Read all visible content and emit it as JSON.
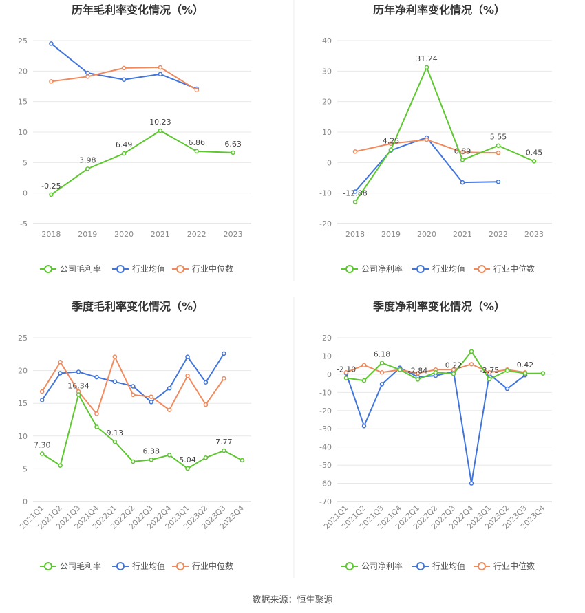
{
  "source_label": "数据来源：恒生聚源",
  "colors": {
    "company": "#5cc72e",
    "industry_avg": "#4175dc",
    "industry_median": "#f08a5d",
    "grid": "#e8e8e8",
    "axis_text": "#888888",
    "title": "#333333"
  },
  "chart_data": [
    {
      "id": "annual-gross",
      "type": "line",
      "title": "历年毛利率变化情况（%）",
      "categories": [
        "2018",
        "2019",
        "2020",
        "2021",
        "2022",
        "2023"
      ],
      "yticks": [
        -5,
        0,
        5,
        10,
        15,
        20,
        25
      ],
      "ylim": [
        -5,
        25
      ],
      "series": [
        {
          "name": "公司毛利率",
          "role": "company",
          "values": [
            -0.25,
            3.98,
            6.49,
            10.23,
            6.86,
            6.63
          ],
          "labels": [
            "-0.25",
            "3.98",
            "6.49",
            "10.23",
            "6.86",
            "6.63"
          ]
        },
        {
          "name": "行业均值",
          "role": "industry_avg",
          "values": [
            24.5,
            19.7,
            18.6,
            19.5,
            17.1,
            null
          ]
        },
        {
          "name": "行业中位数",
          "role": "industry_median",
          "values": [
            18.3,
            19.1,
            20.5,
            20.6,
            16.9,
            null
          ]
        }
      ]
    },
    {
      "id": "annual-net",
      "type": "line",
      "title": "历年净利率变化情况（%）",
      "categories": [
        "2018",
        "2019",
        "2020",
        "2021",
        "2022",
        "2023"
      ],
      "yticks": [
        -20,
        -10,
        0,
        10,
        20,
        30,
        40
      ],
      "ylim": [
        -20,
        40
      ],
      "series": [
        {
          "name": "公司净利率",
          "role": "company",
          "values": [
            -12.88,
            4.25,
            31.24,
            0.89,
            5.55,
            0.45
          ],
          "labels": [
            "-12.88",
            "4.25",
            "31.24",
            "0.89",
            "5.55",
            "0.45"
          ]
        },
        {
          "name": "行业均值",
          "role": "industry_avg",
          "values": [
            -9.5,
            4.0,
            8.2,
            -6.5,
            -6.3,
            null
          ]
        },
        {
          "name": "行业中位数",
          "role": "industry_median",
          "values": [
            3.6,
            6.2,
            7.5,
            3.4,
            3.2,
            null
          ]
        }
      ]
    },
    {
      "id": "quarterly-gross",
      "type": "line",
      "title": "季度毛利率变化情况（%）",
      "categories": [
        "2021Q1",
        "2021Q2",
        "2021Q3",
        "2021Q4",
        "2022Q1",
        "2022Q2",
        "2022Q3",
        "2022Q4",
        "2023Q1",
        "2023Q2",
        "2023Q3",
        "2023Q4"
      ],
      "yticks": [
        0,
        5,
        10,
        15,
        20,
        25
      ],
      "ylim": [
        0,
        25
      ],
      "series": [
        {
          "name": "公司毛利率",
          "role": "company",
          "values": [
            7.3,
            5.5,
            16.34,
            11.4,
            9.13,
            6.1,
            6.38,
            7.1,
            5.04,
            6.7,
            7.77,
            6.3
          ],
          "labels": [
            "7.30",
            null,
            "16.34",
            null,
            "9.13",
            null,
            "6.38",
            null,
            "5.04",
            null,
            "7.77",
            null
          ]
        },
        {
          "name": "行业均值",
          "role": "industry_avg",
          "values": [
            15.5,
            19.6,
            19.8,
            19.0,
            18.3,
            17.6,
            15.2,
            17.3,
            22.1,
            18.2,
            22.6,
            null
          ]
        },
        {
          "name": "行业中位数",
          "role": "industry_median",
          "values": [
            16.8,
            21.3,
            16.8,
            13.4,
            22.1,
            16.3,
            16.0,
            14.0,
            19.2,
            14.8,
            18.8,
            null
          ]
        }
      ]
    },
    {
      "id": "quarterly-net",
      "type": "line",
      "title": "季度净利率变化情况（%）",
      "categories": [
        "2021Q1",
        "2021Q2",
        "2021Q3",
        "2021Q4",
        "2022Q1",
        "2022Q2",
        "2022Q3",
        "2022Q4",
        "2023Q1",
        "2023Q2",
        "2023Q3",
        "2023Q4"
      ],
      "yticks": [
        -70,
        -60,
        -50,
        -40,
        -30,
        -20,
        -10,
        0,
        10,
        20
      ],
      "ylim": [
        -70,
        20
      ],
      "series": [
        {
          "name": "公司净利率",
          "role": "company",
          "values": [
            -2.1,
            -3.5,
            6.18,
            2.5,
            -2.84,
            1.0,
            0.22,
            12.5,
            -2.75,
            2.0,
            0.42,
            0.5
          ],
          "labels": [
            "-2.10",
            null,
            "6.18",
            null,
            "-2.84",
            null,
            "0.22",
            null,
            "-2.75",
            null,
            "0.42",
            null
          ]
        },
        {
          "name": "行业均值",
          "role": "industry_avg",
          "values": [
            0.5,
            -28.5,
            -5.5,
            3.5,
            -1.5,
            -0.8,
            1.5,
            -60.0,
            0.0,
            -8.0,
            -0.5,
            null
          ]
        },
        {
          "name": "行业中位数",
          "role": "industry_median",
          "values": [
            1.0,
            5.0,
            1.0,
            2.5,
            0.5,
            2.5,
            2.5,
            5.5,
            1.0,
            2.5,
            1.0,
            null
          ]
        }
      ]
    }
  ]
}
